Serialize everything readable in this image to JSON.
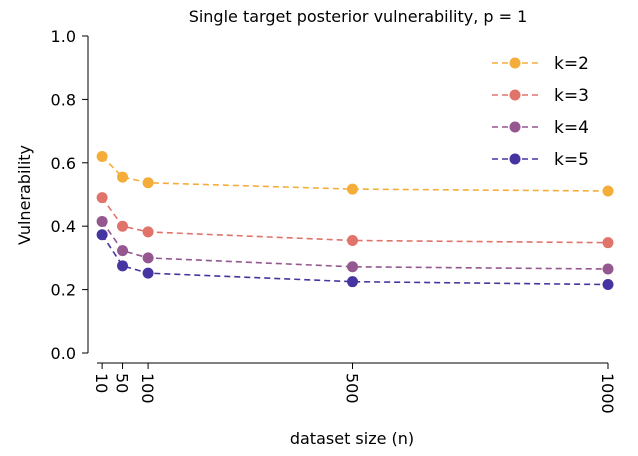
{
  "chart_data": {
    "type": "line",
    "title": "Single target posterior vulnerability, p = 1",
    "xlabel": "dataset size (n)",
    "ylabel": "Vulnerability",
    "x": [
      10,
      50,
      100,
      500,
      1000
    ],
    "x_tick_labels": [
      "10",
      "50",
      "100",
      "500",
      "1000"
    ],
    "xlim": [
      0,
      1000
    ],
    "ylim": [
      0,
      1.0
    ],
    "y_ticks": [
      0.0,
      0.2,
      0.4,
      0.6,
      0.8,
      1.0
    ],
    "y_tick_labels": [
      "0.0",
      "0.2",
      "0.4",
      "0.6",
      "0.8",
      "1.0"
    ],
    "grid": false,
    "legend_position": "top-right",
    "line_style": "dashed",
    "series": [
      {
        "name": "k=2",
        "color": "#f5ad3a",
        "values": [
          0.62,
          0.555,
          0.537,
          0.517,
          0.511
        ]
      },
      {
        "name": "k=3",
        "color": "#e0736a",
        "values": [
          0.49,
          0.4,
          0.382,
          0.355,
          0.348
        ]
      },
      {
        "name": "k=4",
        "color": "#94578f",
        "values": [
          0.415,
          0.323,
          0.3,
          0.272,
          0.265
        ]
      },
      {
        "name": "k=5",
        "color": "#4535a0",
        "values": [
          0.373,
          0.275,
          0.252,
          0.225,
          0.216
        ]
      }
    ]
  }
}
